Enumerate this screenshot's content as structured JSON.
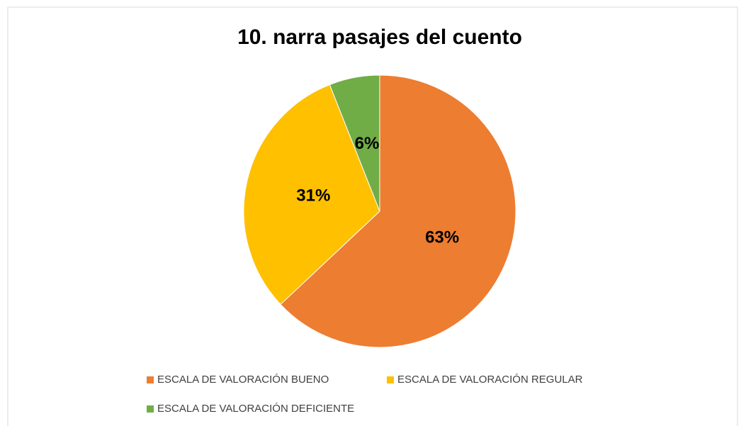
{
  "chart_data": {
    "type": "pie",
    "title": "10. narra pasajes del cuento",
    "categories": [
      "ESCALA DE VALORACIÓN BUENO",
      "ESCALA DE VALORACIÓN REGULAR",
      "ESCALA DE VALORACIÓN DEFICIENTE"
    ],
    "values": [
      63,
      31,
      6
    ],
    "value_labels": [
      "63%",
      "31%",
      "6%"
    ],
    "colors": [
      "#ED7D31",
      "#FFC000",
      "#70AD47"
    ]
  }
}
